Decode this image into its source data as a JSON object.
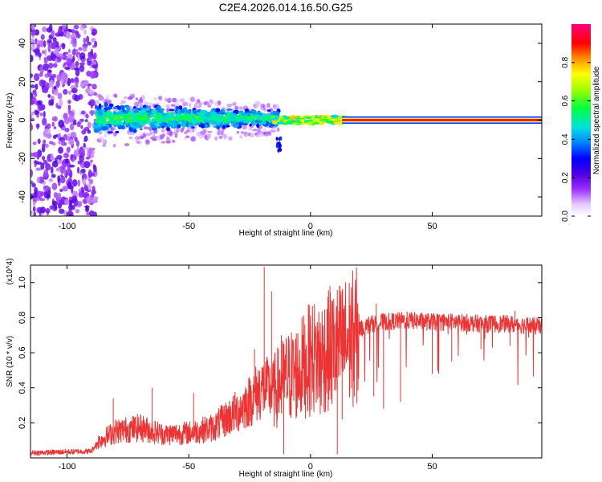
{
  "title": "C2E4.2026.014.16.50.G25",
  "colors": {
    "snr_line": "#ee3333",
    "frame": "#000000",
    "background": "#ffffff"
  },
  "chart_data": [
    {
      "type": "heatmap",
      "xlabel": "Height of straight line (km)",
      "ylabel": "Frequency (Hz)",
      "xlim": [
        -115,
        95
      ],
      "ylim": [
        -50,
        50
      ],
      "x_ticks": [
        -100,
        -50,
        0,
        50
      ],
      "y_ticks": [
        -40,
        -20,
        0,
        20,
        40
      ],
      "x_tick_labels": [
        "-100",
        "-50",
        "0",
        "50"
      ],
      "y_tick_labels": [
        "-40",
        "-20",
        "0",
        "20",
        "40"
      ],
      "colorbar": {
        "label": "Normalized spectral amplitude",
        "range": [
          0.0,
          1.0
        ],
        "ticks": [
          0.0,
          0.2,
          0.4,
          0.6,
          0.8
        ],
        "tick_labels": [
          "0.0",
          "0.2",
          "0.4",
          "0.6",
          "0.8"
        ],
        "colormap": "rainbow (white → purple → blue → cyan → green → yellow → red → magenta)"
      },
      "regions": [
        {
          "x_range": [
            -115,
            -88
          ],
          "freq_spread": [
            -50,
            50
          ],
          "amplitude": 0.15
        },
        {
          "x_range": [
            -88,
            -15
          ],
          "freq_spread": [
            -12,
            10
          ],
          "amplitude": 0.35
        },
        {
          "x_range": [
            -15,
            15
          ],
          "freq_spread": [
            -3,
            3
          ],
          "amplitude": 0.6
        },
        {
          "x_range": [
            15,
            95
          ],
          "freq_spread": [
            -0.5,
            0.5
          ],
          "amplitude": 1.0
        }
      ]
    },
    {
      "type": "line",
      "xlabel": "Height of straight line (km)",
      "ylabel": "SNR (10 * v/v)",
      "y_multiplier": "(x10^4)",
      "xlim": [
        -115,
        95
      ],
      "ylim": [
        0,
        1.1
      ],
      "x_ticks": [
        -100,
        -50,
        0,
        50
      ],
      "y_ticks": [
        0.2,
        0.4,
        0.6,
        0.8,
        1.0
      ],
      "x_tick_labels": [
        "-100",
        "-50",
        "0",
        "50"
      ],
      "y_tick_labels": [
        "0.2",
        "0.4",
        "0.6",
        "0.8",
        "1.0"
      ],
      "series": [
        {
          "envelope_x": [
            -115,
            -90,
            -87,
            -80,
            -70,
            -60,
            -50,
            -40,
            -30,
            -25,
            -20,
            -15,
            -10,
            -5,
            0,
            5,
            10,
            15,
            20,
            25,
            30,
            40,
            50,
            60,
            70,
            80,
            90,
            95
          ],
          "envelope_y": [
            0.03,
            0.04,
            0.1,
            0.16,
            0.18,
            0.14,
            0.15,
            0.18,
            0.28,
            0.34,
            0.42,
            0.4,
            0.48,
            0.52,
            0.6,
            0.62,
            0.66,
            0.7,
            0.74,
            0.77,
            0.78,
            0.79,
            0.78,
            0.78,
            0.77,
            0.77,
            0.76,
            0.75
          ],
          "spikes": [
            {
              "x": -81,
              "y": 0.34
            },
            {
              "x": -65,
              "y": 0.4
            },
            {
              "x": -48,
              "y": 0.37
            },
            {
              "x": -23,
              "y": 0.62
            },
            {
              "x": -19,
              "y": 1.09
            },
            {
              "x": -16,
              "y": 0.95
            },
            {
              "x": -12,
              "y": 0.7
            },
            {
              "x": 8,
              "y": 0.98
            },
            {
              "x": 14,
              "y": 0.85
            },
            {
              "x": 27,
              "y": 0.88
            },
            {
              "x": 84,
              "y": 0.84
            },
            {
              "x": 93,
              "y": 0.8
            }
          ],
          "dips": [
            {
              "x": -11,
              "y": 0.02
            },
            {
              "x": 4,
              "y": 0.25
            },
            {
              "x": 11,
              "y": 0.02
            },
            {
              "x": 13,
              "y": 0.22
            },
            {
              "x": 18,
              "y": 0.35
            },
            {
              "x": 26,
              "y": 0.35
            },
            {
              "x": 30,
              "y": 0.28
            },
            {
              "x": 37,
              "y": 0.32
            },
            {
              "x": 50,
              "y": 0.48
            },
            {
              "x": 58,
              "y": 0.55
            },
            {
              "x": 70,
              "y": 0.62
            },
            {
              "x": 82,
              "y": 0.64
            }
          ]
        }
      ]
    }
  ]
}
